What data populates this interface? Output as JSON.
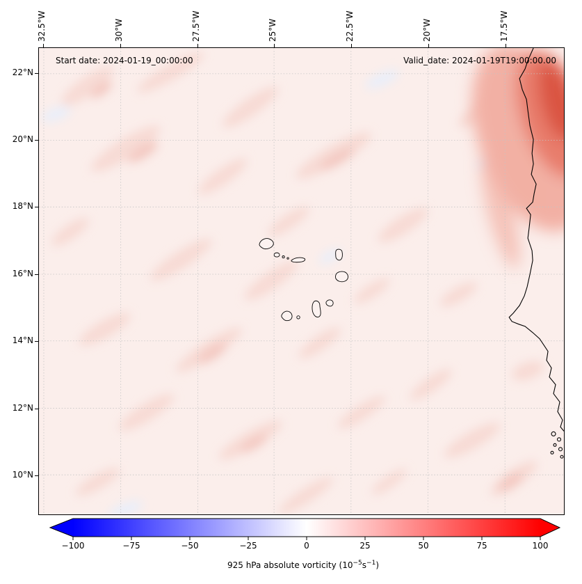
{
  "titles": {
    "start_date": "Start date: 2024-01-19_00:00:00",
    "valid_date": "Valid_date: 2024-01-19T19:00:00.00"
  },
  "axes": {
    "top_tick_labels": [
      "32.5°W",
      "30°W",
      "27.5°W",
      "25°W",
      "22.5°W",
      "20°W",
      "17.5°W"
    ],
    "left_tick_labels": [
      "22°N",
      "20°N",
      "18°N",
      "16°N",
      "14°N",
      "12°N",
      "10°N"
    ]
  },
  "colorbar": {
    "label_text": "925 hPa absolute vorticity (10⁻⁵s⁻¹)",
    "label_prefix": "925 hPa absolute vorticity (10",
    "label_sup1": "−5",
    "label_mid": "s",
    "label_sup2": "−1",
    "label_suffix": ")",
    "tick_labels": [
      "−100",
      "−75",
      "−50",
      "−25",
      "0",
      "25",
      "50",
      "75",
      "100"
    ],
    "colors": [
      "#0000ff",
      "#1a1aff",
      "#3333ff",
      "#4d4dff",
      "#6666ff",
      "#8080ff",
      "#9999ff",
      "#b3b3ff",
      "#ccccff",
      "#e6e6ff",
      "#ffffff",
      "#ffe6e6",
      "#ffcccc",
      "#ffb3b3",
      "#ff9999",
      "#ff8080",
      "#ff6666",
      "#ff4d4d",
      "#ff3333",
      "#ff1a1a",
      "#ff0000"
    ]
  },
  "palette": {
    "base": "#fbeeeb",
    "blob_light": "#f7dad4",
    "blob_mid": "#f3c7c0",
    "blob_blue": "#e9eef9",
    "red_outer": "#f2b0a4",
    "red_mid": "#e87d6c",
    "red_core": "#da5442",
    "coastline": "#000000",
    "graticule": "#c4c4c4"
  },
  "map_features": {
    "coastline": "northwest African coastline (Western Sahara, Mauritania, Senegal, Gambia, Guinea-Bissau)",
    "islands": "Cape Verde archipelago"
  },
  "chart_data": {
    "type": "heatmap",
    "title": "",
    "annotations": [
      "Start date: 2024-01-19_00:00:00",
      "Valid_date: 2024-01-19T19:00:00.00"
    ],
    "x_axis": {
      "label": "",
      "tick_labels": [
        "32.5°W",
        "30°W",
        "27.5°W",
        "25°W",
        "22.5°W",
        "20°W",
        "17.5°W"
      ],
      "lon_range_deg": [
        -32.7,
        -15.6
      ]
    },
    "y_axis": {
      "label": "",
      "tick_labels": [
        "22°N",
        "20°N",
        "18°N",
        "16°N",
        "14°N",
        "12°N",
        "10°N"
      ],
      "lat_range_deg": [
        8.8,
        22.8
      ]
    },
    "colorbar": {
      "label": "925 hPa absolute vorticity (10⁻⁵s⁻¹)",
      "ticks": [
        -100,
        -75,
        -50,
        -25,
        0,
        25,
        50,
        75,
        100
      ],
      "range": [
        -100,
        100
      ],
      "extend": "both",
      "colormap": "bwr (blue-white-red diverging)"
    },
    "grid": "dashed gray graticule at 2.5° lon / 2° lat",
    "legend_position": "horizontal colorbar at bottom",
    "field_estimate_grid": {
      "lon_deg": [
        -32.5,
        -30,
        -27.5,
        -25,
        -22.5,
        -20,
        -17.5
      ],
      "lat_deg": [
        22,
        20,
        18,
        16,
        14,
        12,
        10
      ],
      "values_1e-5_per_s": [
        [
          5,
          6,
          5,
          7,
          6,
          10,
          45
        ],
        [
          6,
          5,
          8,
          6,
          7,
          12,
          60
        ],
        [
          5,
          7,
          6,
          8,
          6,
          9,
          25
        ],
        [
          6,
          5,
          7,
          6,
          8,
          7,
          15
        ],
        [
          5,
          8,
          6,
          7,
          6,
          8,
          12
        ],
        [
          6,
          5,
          7,
          6,
          7,
          6,
          10
        ],
        [
          5,
          6,
          5,
          7,
          5,
          7,
          8
        ]
      ],
      "note": "Weak positive vorticity (pale pink, ~2–15) over most of the ocean with elongated SW–NE streaks; strongest values (~50–90) hug the NW African coast near 19–22°N around 16–17°W; a few near-zero/slightly negative pale patches."
    }
  }
}
